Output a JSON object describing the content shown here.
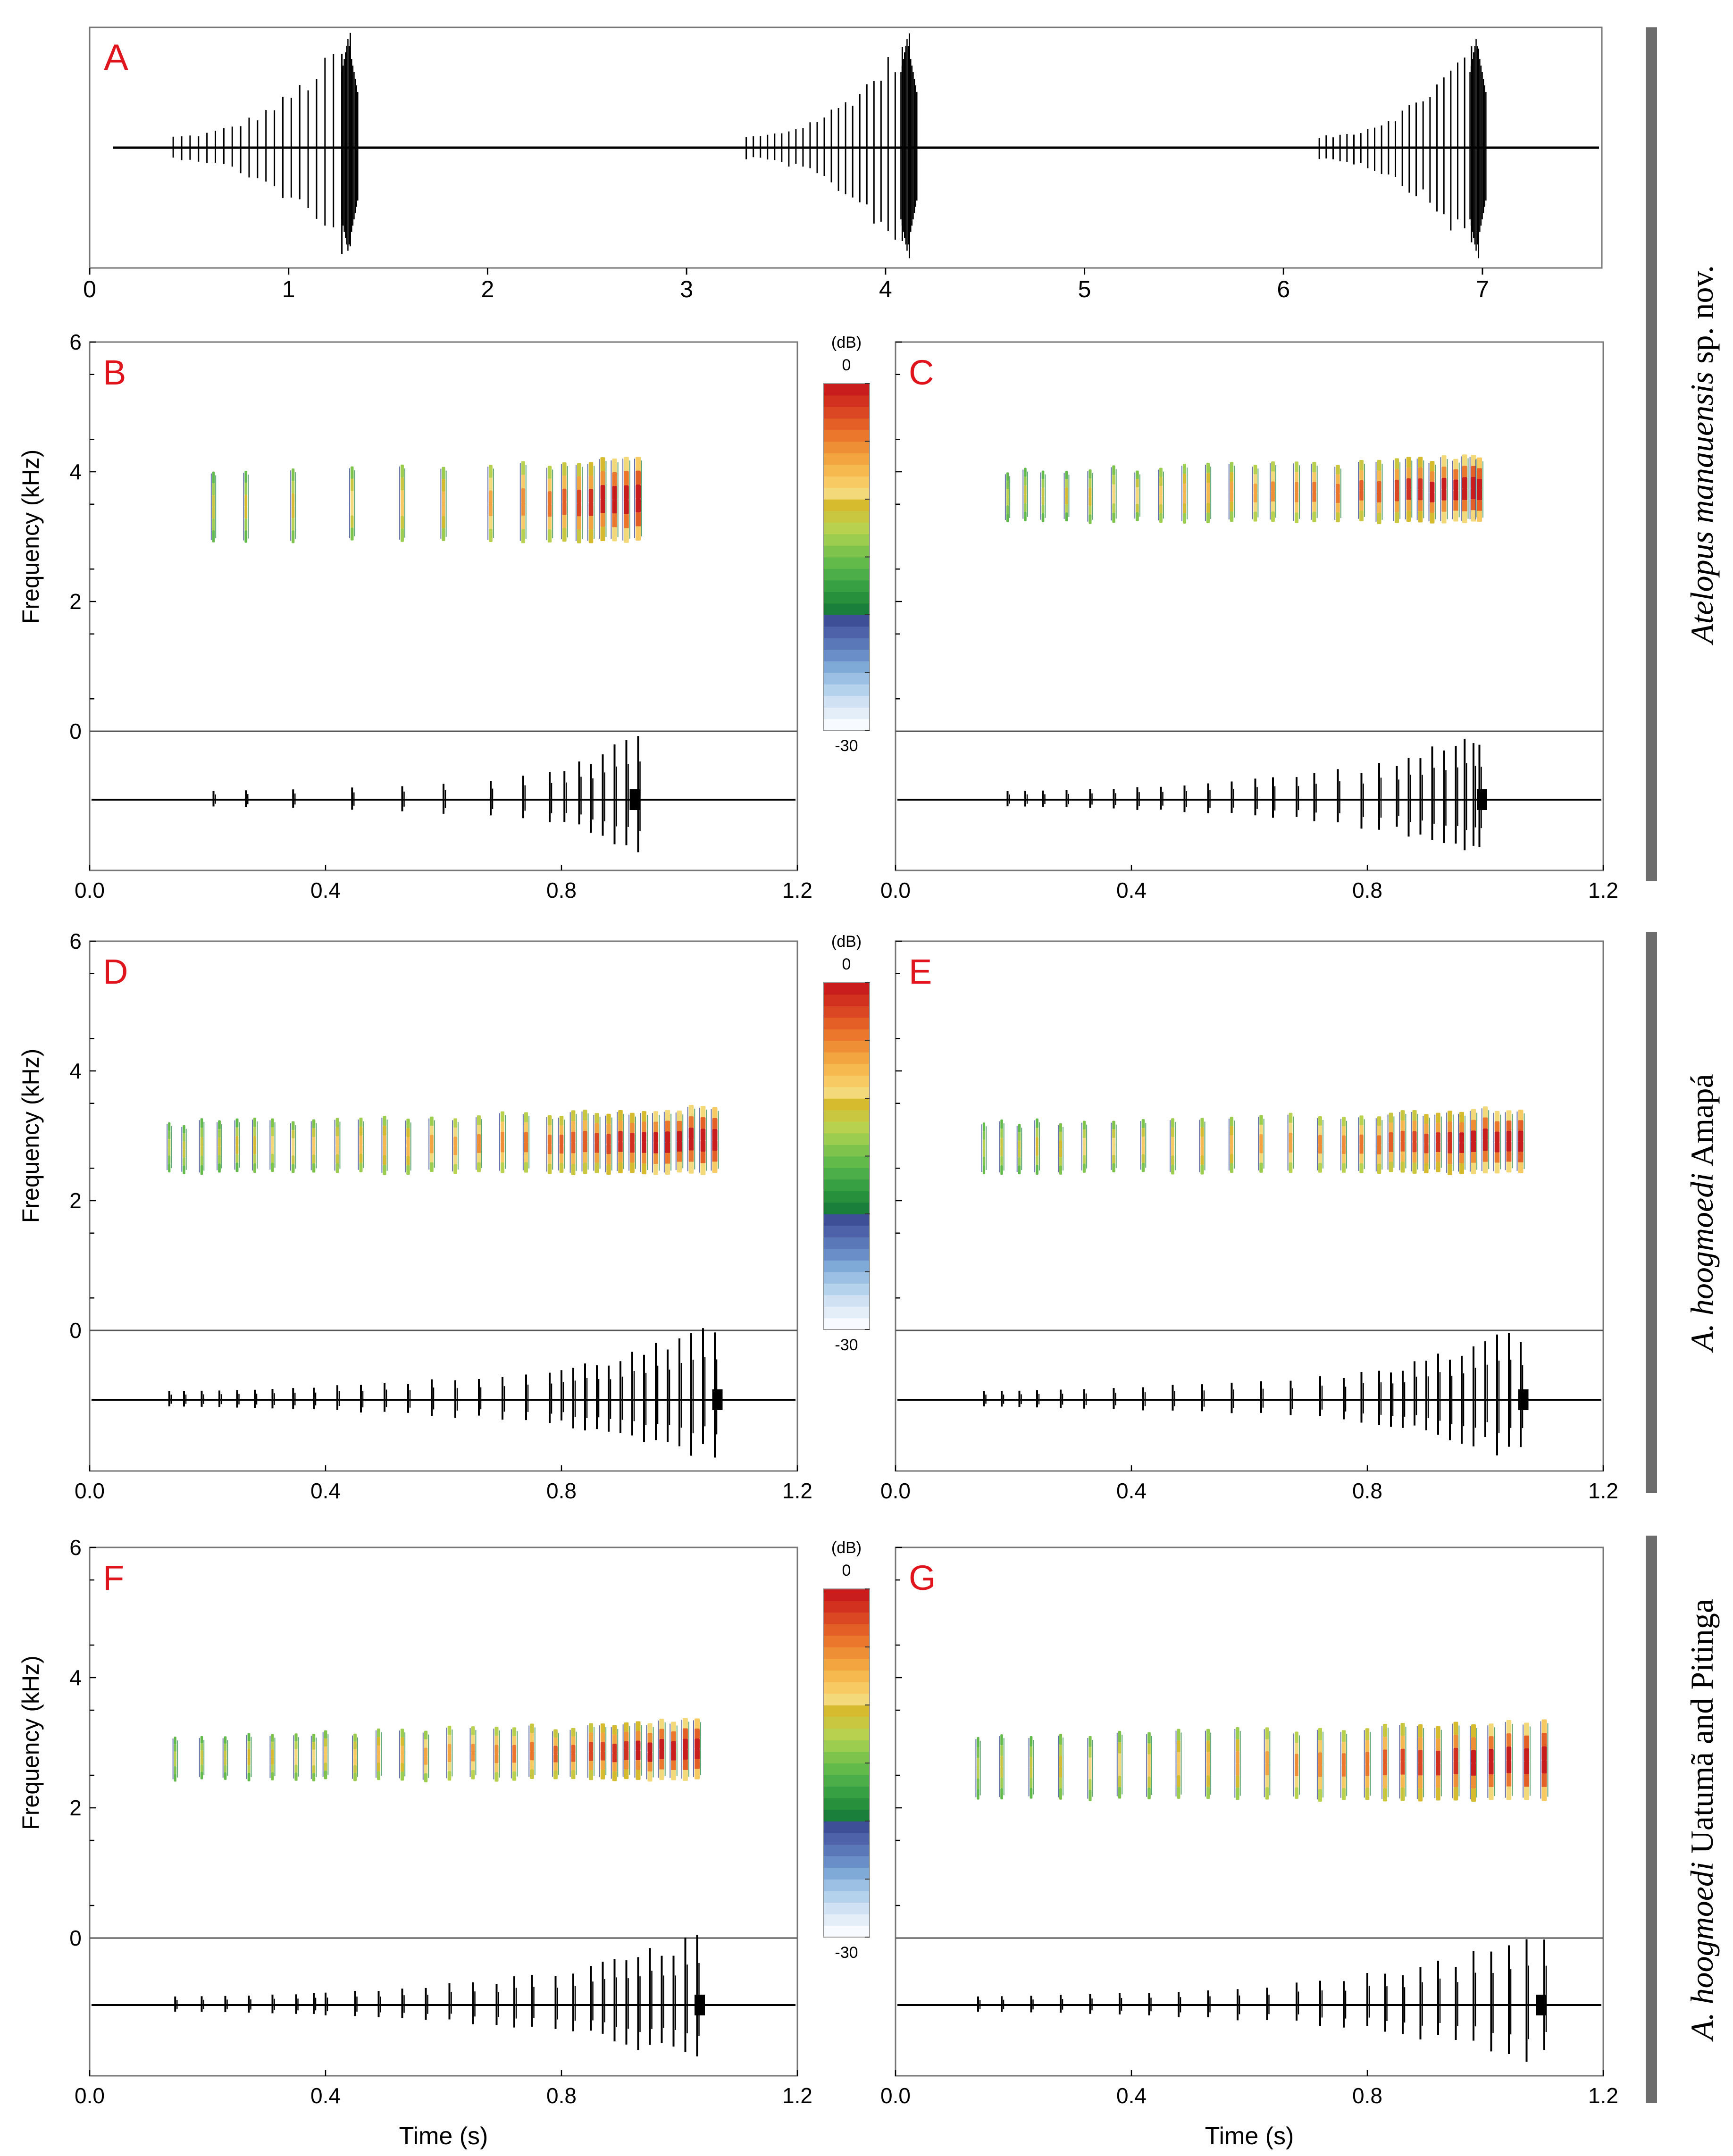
{
  "figure": {
    "panels": {
      "A": {
        "letter": "A",
        "xticks": [
          "0",
          "1",
          "2",
          "3",
          "4",
          "5",
          "6",
          "7"
        ]
      },
      "B": {
        "letter": "B"
      },
      "C": {
        "letter": "C"
      },
      "D": {
        "letter": "D"
      },
      "E": {
        "letter": "E"
      },
      "F": {
        "letter": "F"
      },
      "G": {
        "letter": "G"
      }
    },
    "y_axis_label": "Frequency (kHz)",
    "y_ticks": [
      "6",
      "4",
      "2",
      "0"
    ],
    "x_axis_label": "Time (s)",
    "x_ticks": [
      "0.0",
      "0.4",
      "0.8",
      "1.2"
    ],
    "colorbar": {
      "unit": "(dB)",
      "max": "0",
      "min": "-30"
    },
    "side_labels": {
      "group1": {
        "italic": "Atelopus manauensis",
        "plain": " sp. nov."
      },
      "group2": {
        "italic": "A. hoogmoedi",
        "plain": " Amapá"
      },
      "group3": {
        "italic": "A. hoogmoedi",
        "plain": " Uatumã and Pitinga"
      }
    },
    "colors": {
      "panel_letter": "#e0141c",
      "side_bar": "#6d6d6d",
      "waveform": "#000000"
    }
  },
  "chart_data": [
    {
      "panel": "A",
      "type": "line",
      "description": "oscillogram of three notes",
      "xlim": [
        0,
        7.6
      ],
      "notes": [
        {
          "start": 0.42,
          "end": 1.31,
          "pulses": 22
        },
        {
          "start": 3.3,
          "end": 4.12,
          "pulses": 24
        },
        {
          "start": 6.18,
          "end": 6.98,
          "pulses": 24
        }
      ]
    },
    {
      "panel": "B",
      "type": "heatmap",
      "xlim": [
        0,
        1.2
      ],
      "ylim": [
        0,
        6
      ],
      "pulse_times": [
        0.21,
        0.265,
        0.345,
        0.445,
        0.53,
        0.6,
        0.68,
        0.735,
        0.78,
        0.805,
        0.83,
        0.85,
        0.87,
        0.89,
        0.91,
        0.93
      ],
      "freq_range_khz": [
        2.9,
        4.2
      ],
      "end": 0.93
    },
    {
      "panel": "C",
      "type": "heatmap",
      "xlim": [
        0,
        1.2
      ],
      "ylim": [
        0,
        6
      ],
      "pulse_times": [
        0.19,
        0.22,
        0.25,
        0.29,
        0.33,
        0.37,
        0.41,
        0.45,
        0.49,
        0.53,
        0.57,
        0.61,
        0.64,
        0.68,
        0.71,
        0.75,
        0.79,
        0.82,
        0.85,
        0.87,
        0.89,
        0.91,
        0.93,
        0.95,
        0.965,
        0.98,
        0.99
      ],
      "freq_range_khz": [
        3.2,
        4.2
      ],
      "end": 1.0
    },
    {
      "panel": "D",
      "type": "heatmap",
      "xlim": [
        0,
        1.2
      ],
      "ylim": [
        0,
        6
      ],
      "pulse_times": [
        0.135,
        0.16,
        0.19,
        0.22,
        0.25,
        0.28,
        0.31,
        0.345,
        0.38,
        0.42,
        0.46,
        0.5,
        0.54,
        0.58,
        0.62,
        0.66,
        0.7,
        0.74,
        0.78,
        0.8,
        0.82,
        0.84,
        0.86,
        0.88,
        0.9,
        0.92,
        0.94,
        0.96,
        0.98,
        1.0,
        1.02,
        1.04,
        1.06
      ],
      "freq_range_khz": [
        2.4,
        3.4
      ],
      "end": 1.07
    },
    {
      "panel": "E",
      "type": "heatmap",
      "xlim": [
        0,
        1.2
      ],
      "ylim": [
        0,
        6
      ],
      "pulse_times": [
        0.15,
        0.18,
        0.21,
        0.24,
        0.28,
        0.32,
        0.37,
        0.42,
        0.47,
        0.52,
        0.57,
        0.62,
        0.67,
        0.72,
        0.76,
        0.79,
        0.82,
        0.84,
        0.86,
        0.88,
        0.9,
        0.92,
        0.94,
        0.96,
        0.98,
        1.0,
        1.02,
        1.04,
        1.06
      ],
      "freq_range_khz": [
        2.4,
        3.4
      ],
      "end": 1.07
    },
    {
      "panel": "F",
      "type": "heatmap",
      "xlim": [
        0,
        1.2
      ],
      "ylim": [
        0,
        6
      ],
      "pulse_times": [
        0.145,
        0.19,
        0.23,
        0.27,
        0.31,
        0.35,
        0.38,
        0.4,
        0.45,
        0.49,
        0.53,
        0.57,
        0.61,
        0.65,
        0.69,
        0.72,
        0.75,
        0.79,
        0.82,
        0.85,
        0.87,
        0.89,
        0.91,
        0.93,
        0.95,
        0.97,
        0.99,
        1.01,
        1.03
      ],
      "freq_range_khz": [
        2.4,
        3.3
      ],
      "end": 1.04
    },
    {
      "panel": "G",
      "type": "heatmap",
      "xlim": [
        0,
        1.2
      ],
      "ylim": [
        0,
        6
      ],
      "pulse_times": [
        0.14,
        0.18,
        0.23,
        0.28,
        0.33,
        0.38,
        0.43,
        0.48,
        0.53,
        0.58,
        0.63,
        0.68,
        0.72,
        0.76,
        0.8,
        0.83,
        0.86,
        0.89,
        0.92,
        0.95,
        0.98,
        1.01,
        1.04,
        1.07,
        1.1
      ],
      "freq_range_khz": [
        2.1,
        3.3
      ],
      "end": 1.1
    }
  ]
}
